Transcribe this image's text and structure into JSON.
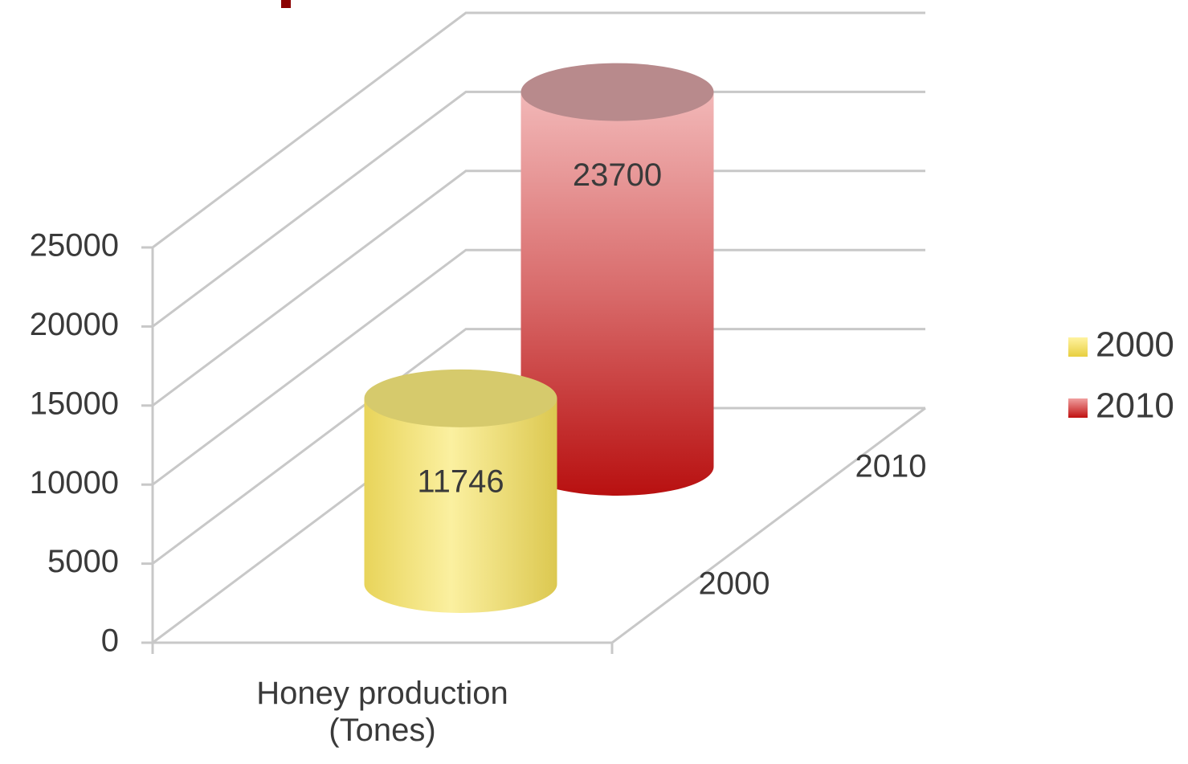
{
  "chart_data": {
    "type": "bar",
    "categories": [
      "Honey production (Tones)"
    ],
    "series": [
      {
        "name": "2000",
        "color": "#f5e06a",
        "values": [
          11746
        ]
      },
      {
        "name": "2010",
        "color": "#c82020",
        "values": [
          23700
        ]
      }
    ],
    "ylim": [
      0,
      25000
    ],
    "yticks": [
      0,
      5000,
      10000,
      15000,
      20000,
      25000
    ],
    "grid": true,
    "legend": "right"
  }
}
